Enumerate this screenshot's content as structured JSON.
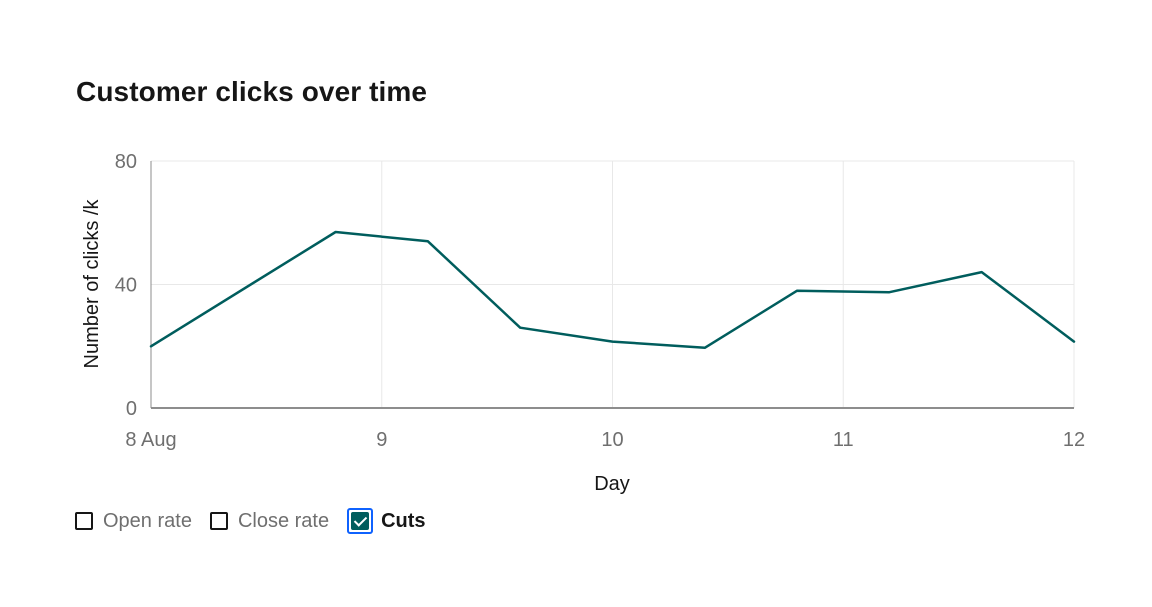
{
  "title": "Customer clicks over time",
  "legend": {
    "items": [
      {
        "label": "Open rate",
        "checked": false
      },
      {
        "label": "Close rate",
        "checked": false
      },
      {
        "label": "Cuts",
        "checked": true
      }
    ]
  },
  "colors": {
    "series": "#005d5d",
    "focus": "#0f62fe",
    "grid": "#e8e8e8",
    "axis": "#8d8d8d"
  },
  "chart_data": {
    "type": "line",
    "title": "Customer clicks over time",
    "xlabel": "Day",
    "ylabel": "Number of clicks /k",
    "xlim": [
      8,
      12
    ],
    "ylim": [
      0,
      80
    ],
    "x_ticks": [
      {
        "value": 8,
        "label": "8 Aug"
      },
      {
        "value": 9,
        "label": "9"
      },
      {
        "value": 10,
        "label": "10"
      },
      {
        "value": 11,
        "label": "11"
      },
      {
        "value": 12,
        "label": "12"
      }
    ],
    "y_ticks": [
      {
        "value": 0,
        "label": "0"
      },
      {
        "value": 40,
        "label": "40"
      },
      {
        "value": 80,
        "label": "80"
      }
    ],
    "grid": true,
    "legend_position": "bottom-left",
    "series": [
      {
        "name": "Cuts",
        "points": [
          {
            "x": 8.0,
            "y": 20
          },
          {
            "x": 8.8,
            "y": 57
          },
          {
            "x": 9.2,
            "y": 54
          },
          {
            "x": 9.6,
            "y": 26
          },
          {
            "x": 10.0,
            "y": 21.5
          },
          {
            "x": 10.4,
            "y": 19.5
          },
          {
            "x": 10.8,
            "y": 38
          },
          {
            "x": 11.2,
            "y": 37.5
          },
          {
            "x": 11.6,
            "y": 44
          },
          {
            "x": 12.0,
            "y": 21.5
          }
        ]
      }
    ]
  }
}
